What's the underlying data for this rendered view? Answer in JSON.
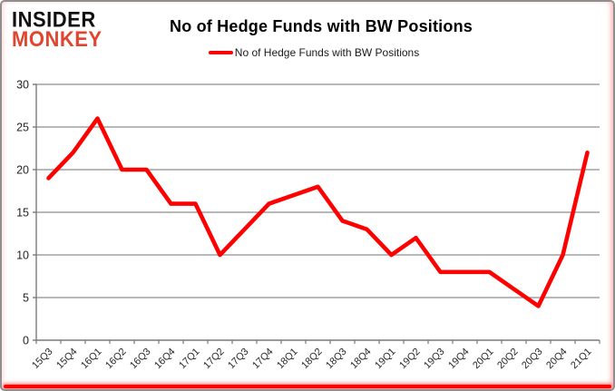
{
  "branding": {
    "logo_line1": "INSIDER",
    "logo_line2": "MONKEY"
  },
  "header": {
    "title": "No of Hedge Funds with BW Positions"
  },
  "legend": {
    "label": "No of Hedge Funds with BW Positions"
  },
  "colors": {
    "series_line": "#ff0000",
    "logo_accent": "#e0452f",
    "frame_bottom_accent": "#ff0000",
    "gridline": "#8e8e8e",
    "axis": "#7a7a7a",
    "tick_label": "#262626"
  },
  "chart_data": {
    "type": "line",
    "title": "No of Hedge Funds with BW Positions",
    "xlabel": "",
    "ylabel": "",
    "categories": [
      "15Q3",
      "15Q4",
      "16Q1",
      "16Q2",
      "16Q3",
      "16Q4",
      "17Q1",
      "17Q2",
      "17Q3",
      "17Q4",
      "18Q1",
      "18Q2",
      "18Q3",
      "18Q4",
      "19Q1",
      "19Q2",
      "19Q3",
      "19Q4",
      "20Q1",
      "20Q2",
      "20Q3",
      "20Q4",
      "21Q1"
    ],
    "series": [
      {
        "name": "No of Hedge Funds with BW Positions",
        "color": "#ff0000",
        "values": [
          19,
          22,
          26,
          20,
          20,
          16,
          16,
          10,
          13,
          16,
          17,
          18,
          14,
          13,
          10,
          12,
          8,
          8,
          8,
          6,
          4,
          10,
          22
        ]
      }
    ],
    "ylim": [
      0,
      30
    ],
    "yticks": [
      0,
      5,
      10,
      15,
      20,
      25,
      30
    ],
    "grid": true,
    "legend_position": "top"
  }
}
